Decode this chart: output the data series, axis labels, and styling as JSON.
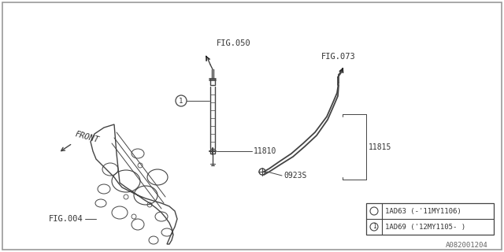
{
  "bg_color": "#ffffff",
  "border_color": "#aaaaaa",
  "line_color": "#444444",
  "text_color": "#333333",
  "watermark": "A082001204",
  "labels": {
    "fig050": "FIG.050",
    "fig073": "FIG.073",
    "fig004": "FIG.004",
    "front": "FRONT",
    "part11810": "11810",
    "part11815": "11815",
    "part09235": "0923S",
    "legend_row1": "1AD63 (-'11MY1106)",
    "legend_row2": "1AD69 ('12MY1105- )"
  }
}
